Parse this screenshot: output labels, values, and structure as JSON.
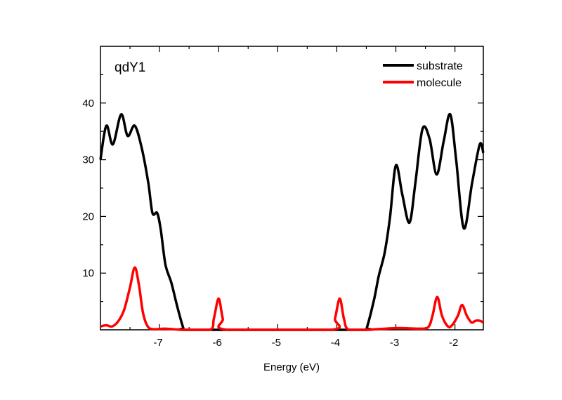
{
  "chart_data": {
    "type": "line",
    "title": "",
    "annotation": "qdY1",
    "xlabel": "Energy (eV)",
    "ylabel": "",
    "xlim": [
      -8.0,
      -1.52
    ],
    "ylim": [
      0,
      50
    ],
    "xticks": [
      -7,
      -6,
      -5,
      -4,
      -3,
      -2
    ],
    "xtick_labels": [
      "-7",
      "-6",
      "-5",
      "-4",
      "-3",
      "-2"
    ],
    "yticks": [
      10,
      20,
      30,
      40
    ],
    "ytick_labels": [
      "10",
      "20",
      "30",
      "40"
    ],
    "grid": false,
    "legend_position": "top-right",
    "series": [
      {
        "name": "substrate",
        "color": "#000000",
        "x": [
          -8.0,
          -7.9,
          -7.79,
          -7.65,
          -7.54,
          -7.42,
          -7.3,
          -7.19,
          -7.12,
          -7.04,
          -6.98,
          -6.9,
          -6.8,
          -6.7,
          -6.6,
          -6.55,
          -5,
          -3.52,
          -3.49,
          -3.37,
          -3.29,
          -3.19,
          -3.1,
          -3.0,
          -2.89,
          -2.77,
          -2.67,
          -2.55,
          -2.43,
          -2.31,
          -2.19,
          -2.08,
          -1.98,
          -1.85,
          -1.71,
          -1.58,
          -1.52
        ],
        "y": [
          30,
          36,
          32.7,
          38,
          34.2,
          36,
          32,
          25.9,
          20.6,
          20.6,
          17.7,
          11.5,
          8.3,
          4.1,
          0.4,
          0,
          0,
          0,
          0.4,
          5.3,
          9.5,
          13.6,
          19.8,
          29,
          23.8,
          18.9,
          25.9,
          35.4,
          33.7,
          27.4,
          33.3,
          38,
          30,
          17.9,
          25.9,
          32.7,
          31.2
        ]
      },
      {
        "name": "molecule",
        "color": "#ff0000",
        "x": [
          -8.0,
          -7.9,
          -7.8,
          -7.7,
          -7.6,
          -7.5,
          -7.42,
          -7.35,
          -7.28,
          -7.2,
          -7.1,
          -6.9,
          -6.6,
          -6.15,
          -6.08,
          -6.0,
          -5.93,
          -5.85,
          -4.1,
          -4.03,
          -3.95,
          -3.88,
          -3.8,
          -3.5,
          -3.0,
          -2.6,
          -2.45,
          -2.38,
          -2.3,
          -2.22,
          -2.12,
          -2.05,
          -1.95,
          -1.88,
          -1.8,
          -1.72,
          -1.65,
          -1.58,
          -1.52
        ],
        "y": [
          0.6,
          0.8,
          0.6,
          1.5,
          3.5,
          7.5,
          11,
          8,
          3,
          0.6,
          0.1,
          0.2,
          0,
          0,
          2,
          5.5,
          2,
          0,
          0,
          2,
          5.5,
          2,
          0,
          0,
          0.3,
          0.2,
          0.5,
          2.5,
          5.8,
          2.5,
          0.6,
          0.8,
          2.5,
          4.4,
          2.5,
          1.3,
          1.6,
          1.6,
          1.3
        ]
      }
    ]
  }
}
